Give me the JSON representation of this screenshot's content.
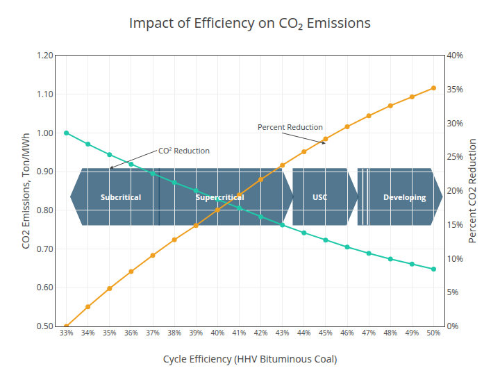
{
  "chart_data": {
    "type": "line",
    "title": "Impact of Efficiency on CO₂ Emissions",
    "xlabel": "Cycle Efficiency (HHV Bituminous Coal)",
    "ylabel": "CO2 Emissions, Ton/MWh",
    "y2label": "Percent CO2 Reduction",
    "x": [
      33,
      34,
      35,
      36,
      37,
      38,
      39,
      40,
      41,
      42,
      43,
      44,
      45,
      46,
      47,
      48,
      49,
      50
    ],
    "series": [
      {
        "color": "#1ec8a8",
        "marker": "circle",
        "values": [
          1.0,
          0.971,
          0.944,
          0.919,
          0.895,
          0.872,
          0.851,
          0.828,
          0.806,
          0.783,
          0.762,
          0.742,
          0.723,
          0.705,
          0.689,
          0.674,
          0.661,
          0.648
        ]
      },
      {
        "color": "#f0a020",
        "marker": "circle",
        "axis": "y2",
        "values": [
          0.0,
          0.029,
          0.056,
          0.081,
          0.105,
          0.128,
          0.149,
          0.172,
          0.194,
          0.217,
          0.238,
          0.258,
          0.277,
          0.295,
          0.311,
          0.326,
          0.339,
          0.352
        ]
      }
    ],
    "xlim": [
      32.5,
      50.5
    ],
    "xticks": [
      {
        "value": 33,
        "label": "33%"
      },
      {
        "value": 34,
        "label": "34%"
      },
      {
        "value": 35,
        "label": "35%"
      },
      {
        "value": 36,
        "label": "36%"
      },
      {
        "value": 37,
        "label": "37%"
      },
      {
        "value": 38,
        "label": "38%"
      },
      {
        "value": 39,
        "label": "39%"
      },
      {
        "value": 40,
        "label": "40%"
      },
      {
        "value": 41,
        "label": "41%"
      },
      {
        "value": 42,
        "label": "42%"
      },
      {
        "value": 43,
        "label": "43%"
      },
      {
        "value": 44,
        "label": "44%"
      },
      {
        "value": 45,
        "label": "45%"
      },
      {
        "value": 46,
        "label": "46%"
      },
      {
        "value": 47,
        "label": "47%"
      },
      {
        "value": 48,
        "label": "48%"
      },
      {
        "value": 49,
        "label": "49%"
      },
      {
        "value": 50,
        "label": "50%"
      }
    ],
    "ylim": [
      0.5,
      1.2
    ],
    "yticks": [
      {
        "value": 0.5,
        "label": "0.50"
      },
      {
        "value": 0.6,
        "label": "0.60"
      },
      {
        "value": 0.7,
        "label": "0.70"
      },
      {
        "value": 0.8,
        "label": "0.80"
      },
      {
        "value": 0.9,
        "label": "0.90"
      },
      {
        "value": 1.0,
        "label": "1.00"
      },
      {
        "value": 1.1,
        "label": "1.10"
      },
      {
        "value": 1.2,
        "label": "1.20"
      }
    ],
    "y2lim": [
      0.0,
      0.4
    ],
    "y2ticks": [
      {
        "value": 0.0,
        "label": "0%"
      },
      {
        "value": 0.05,
        "label": "5%"
      },
      {
        "value": 0.1,
        "label": "10%"
      },
      {
        "value": 0.15,
        "label": "15%"
      },
      {
        "value": 0.2,
        "label": "20%"
      },
      {
        "value": 0.25,
        "label": "25%"
      },
      {
        "value": 0.3,
        "label": "30%"
      },
      {
        "value": 0.35,
        "label": "35%"
      },
      {
        "value": 0.4,
        "label": "40%"
      }
    ],
    "grid": true,
    "legend": false,
    "zones": [
      {
        "label": "Subcritical",
        "x": [
          33.2,
          37.3
        ],
        "y": [
          0.7625,
          0.9075
        ],
        "direction": "left",
        "color": "#1a4a6a"
      },
      {
        "label": "Supercritical",
        "x": [
          37.3,
          43.5
        ],
        "y": [
          0.7625,
          0.9075
        ],
        "direction": "right",
        "color": "#1a4a6a"
      },
      {
        "label": "USC",
        "x": [
          43.5,
          46.5
        ],
        "y": [
          0.7625,
          0.9075
        ],
        "direction": "right",
        "color": "#1a4a6a"
      },
      {
        "label": "Developing",
        "x": [
          46.5,
          50.4
        ],
        "y": [
          0.7625,
          0.9075
        ],
        "direction": "right_barred",
        "color": "#1a4a6a"
      }
    ],
    "annotations": [
      {
        "text": "CO² Reduction",
        "x": 35.0,
        "y": 0.908,
        "text_x": 37.2,
        "text_y": 0.955
      },
      {
        "text": "Percent Reduction",
        "x": 45.0,
        "y": 0.27,
        "text_x": 41.8,
        "text_y": 0.295,
        "axis": "y2"
      }
    ]
  }
}
